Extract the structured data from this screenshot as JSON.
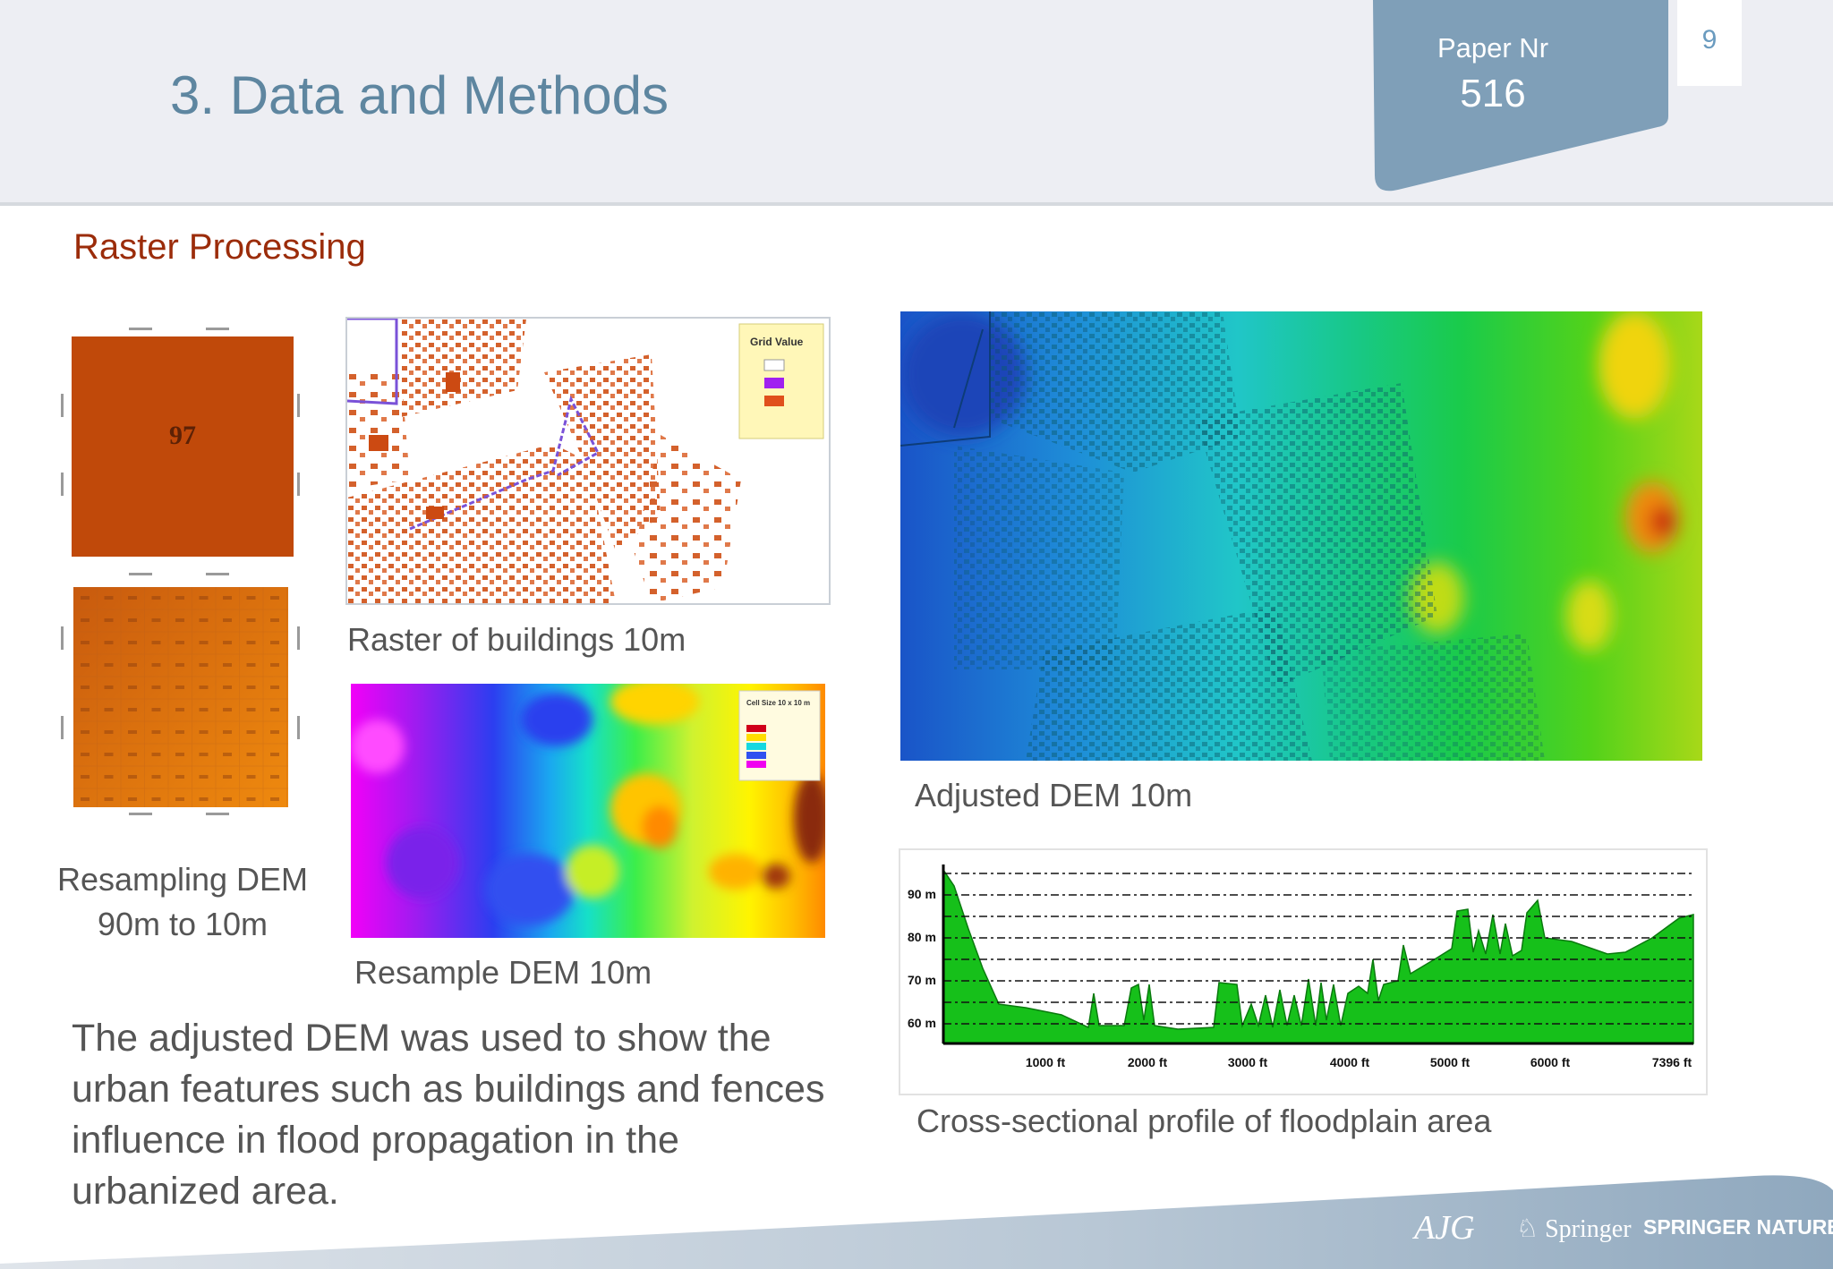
{
  "header": {
    "title": "3. Data and Methods",
    "paper_label": "Paper Nr",
    "paper_number": "516",
    "page_number": "9"
  },
  "section_title": "Raster Processing",
  "images": {
    "resampling": {
      "top_value": "97",
      "caption_line1": "Resampling DEM",
      "caption_line2": "90m to 10m"
    },
    "buildings": {
      "legend_title": "Grid Value",
      "caption": "Raster of buildings 10m"
    },
    "resample": {
      "legend_title": "Cell Size 10 x 10 m",
      "caption": "Resample DEM 10m"
    },
    "adjusted": {
      "caption": "Adjusted DEM 10m"
    },
    "profile": {
      "caption": "Cross-sectional profile of floodplain area",
      "y_labels": [
        "90 m",
        "80 m",
        "70 m",
        "60 m"
      ],
      "x_labels": [
        "1000 ft",
        "2000 ft",
        "3000 ft",
        "4000 ft",
        "5000 ft",
        "6000 ft",
        "7396 ft"
      ]
    }
  },
  "body_text": "The adjusted DEM was used to show the urban features such as buildings and fences influence in flood propagation in the urbanized area.",
  "footer": {
    "logo_1": "AJG",
    "logo_2": "Springer",
    "logo_3": "SPRINGER NATURE"
  },
  "colors": {
    "title": "#5e86a0",
    "section": "#9b2c0a",
    "badge": "#7f9fb8",
    "text": "#555555"
  }
}
